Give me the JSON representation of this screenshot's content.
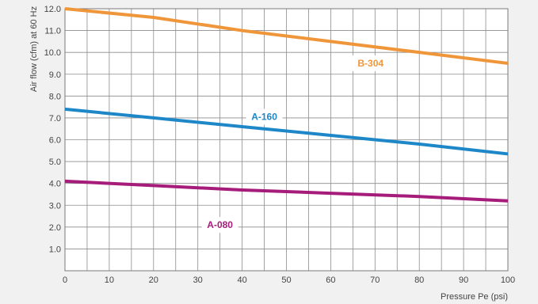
{
  "chart_data": {
    "type": "line",
    "xlabel": "Pressure Pe (psi)",
    "ylabel": "Air flow (cfm) at 60 Hz",
    "xlim": [
      0,
      100
    ],
    "ylim": [
      0,
      12
    ],
    "x_ticks": [
      "0",
      "10",
      "20",
      "30",
      "40",
      "50",
      "60",
      "70",
      "80",
      "90",
      "100"
    ],
    "y_ticks": [
      "1.0",
      "2.0",
      "3.0",
      "4.0",
      "5.0",
      "6.0",
      "7.0",
      "8.0",
      "9.0",
      "10.0",
      "11.0",
      "12.0"
    ],
    "grid": true,
    "series": [
      {
        "name": "B-304",
        "color": "#f0963a",
        "x": [
          0,
          20,
          40,
          60,
          80,
          100
        ],
        "y": [
          12.0,
          11.6,
          11.0,
          10.5,
          10.0,
          9.5
        ]
      },
      {
        "name": "A-160",
        "color": "#1e87c8",
        "x": [
          0,
          20,
          40,
          60,
          80,
          100
        ],
        "y": [
          7.4,
          7.0,
          6.6,
          6.2,
          5.8,
          5.35
        ]
      },
      {
        "name": "A-080",
        "color": "#a51c7a",
        "x": [
          0,
          20,
          40,
          60,
          80,
          100
        ],
        "y": [
          4.1,
          3.9,
          3.7,
          3.55,
          3.4,
          3.2
        ]
      }
    ],
    "series_label_positions": [
      {
        "x": 69,
        "y": 9.5
      },
      {
        "x": 45,
        "y": 7.05
      },
      {
        "x": 35,
        "y": 2.1
      }
    ]
  }
}
